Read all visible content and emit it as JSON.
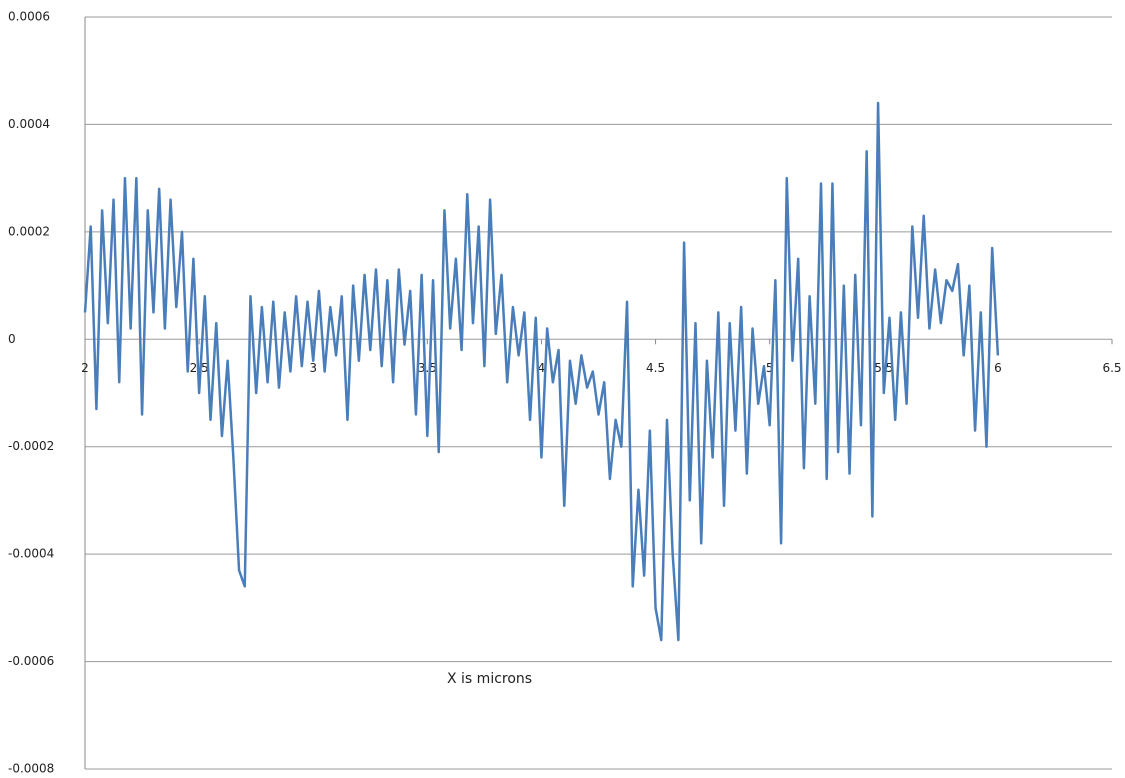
{
  "chart_data": {
    "type": "line",
    "annotation": "X is microns",
    "grid": true,
    "xlim": [
      2,
      6.5
    ],
    "xticks": [
      2,
      2.5,
      3,
      3.5,
      4,
      4.5,
      5,
      5.5,
      6,
      6.5
    ],
    "ylim": [
      -0.0008,
      0.0006
    ],
    "yticks": [
      0.0006,
      0.0004,
      0.0002,
      0,
      -0.0002,
      -0.0004,
      -0.0006,
      -0.0008
    ],
    "x": [
      2,
      2.025,
      2.05,
      2.075,
      2.1,
      2.125,
      2.15,
      2.175,
      2.2,
      2.225,
      2.25,
      2.275,
      2.3,
      2.325,
      2.35,
      2.375,
      2.4,
      2.425,
      2.45,
      2.475,
      2.5,
      2.525,
      2.55,
      2.575,
      2.6,
      2.625,
      2.65,
      2.675,
      2.7,
      2.725,
      2.75,
      2.775,
      2.8,
      2.825,
      2.85,
      2.875,
      2.9,
      2.925,
      2.95,
      2.975,
      3,
      3.025,
      3.05,
      3.075,
      3.1,
      3.125,
      3.15,
      3.175,
      3.2,
      3.225,
      3.25,
      3.275,
      3.3,
      3.325,
      3.35,
      3.375,
      3.4,
      3.425,
      3.45,
      3.475,
      3.5,
      3.525,
      3.55,
      3.575,
      3.6,
      3.625,
      3.65,
      3.675,
      3.7,
      3.725,
      3.75,
      3.775,
      3.8,
      3.825,
      3.85,
      3.875,
      3.9,
      3.925,
      3.95,
      3.975,
      4,
      4.025,
      4.05,
      4.075,
      4.1,
      4.125,
      4.15,
      4.175,
      4.2,
      4.225,
      4.25,
      4.275,
      4.3,
      4.325,
      4.35,
      4.375,
      4.4,
      4.425,
      4.45,
      4.475,
      4.5,
      4.525,
      4.55,
      4.575,
      4.6,
      4.625,
      4.65,
      4.675,
      4.7,
      4.725,
      4.75,
      4.775,
      4.8,
      4.825,
      4.85,
      4.875,
      4.9,
      4.925,
      4.95,
      4.975,
      5,
      5.025,
      5.05,
      5.075,
      5.1,
      5.125,
      5.15,
      5.175,
      5.2,
      5.225,
      5.25,
      5.275,
      5.3,
      5.325,
      5.35,
      5.375,
      5.4,
      5.425,
      5.45,
      5.475,
      5.5,
      5.525,
      5.55,
      5.575,
      5.6,
      5.625,
      5.65,
      5.675,
      5.7,
      5.725,
      5.75,
      5.775,
      5.8,
      5.825,
      5.85,
      5.875,
      5.9,
      5.925,
      5.95,
      5.975,
      6
    ],
    "series": [
      {
        "color": "#4a7ebb",
        "values": [
          5e-05,
          0.00021,
          -0.00013,
          0.00024,
          3e-05,
          0.00026,
          -8e-05,
          0.0003,
          2e-05,
          0.0003,
          -0.00014,
          0.00024,
          5e-05,
          0.00028,
          2e-05,
          0.00026,
          6e-05,
          0.0002,
          -6e-05,
          0.00015,
          -0.0001,
          8e-05,
          -0.00015,
          3e-05,
          -0.00018,
          -4e-05,
          -0.00022,
          -0.00043,
          -0.00046,
          8e-05,
          -0.0001,
          6e-05,
          -8e-05,
          7e-05,
          -9e-05,
          5e-05,
          -6e-05,
          8e-05,
          -5e-05,
          7e-05,
          -4e-05,
          9e-05,
          -6e-05,
          6e-05,
          -3e-05,
          8e-05,
          -0.00015,
          0.0001,
          -4e-05,
          0.00012,
          -2e-05,
          0.00013,
          -5e-05,
          0.00011,
          -8e-05,
          0.00013,
          -1e-05,
          9e-05,
          -0.00014,
          0.00012,
          -0.00018,
          0.00011,
          -0.00021,
          0.00024,
          2e-05,
          0.00015,
          -2e-05,
          0.00027,
          3e-05,
          0.00021,
          -5e-05,
          0.00026,
          1e-05,
          0.00012,
          -8e-05,
          6e-05,
          -3e-05,
          5e-05,
          -0.00015,
          4e-05,
          -0.00022,
          2e-05,
          -8e-05,
          -2e-05,
          -0.00031,
          -4e-05,
          -0.00012,
          -3e-05,
          -9e-05,
          -6e-05,
          -0.00014,
          -8e-05,
          -0.00026,
          -0.00015,
          -0.0002,
          7e-05,
          -0.00046,
          -0.00028,
          -0.00044,
          -0.00017,
          -0.0005,
          -0.00056,
          -0.00015,
          -0.0004,
          -0.00056,
          0.00018,
          -0.0003,
          3e-05,
          -0.00038,
          -4e-05,
          -0.00022,
          5e-05,
          -0.00031,
          3e-05,
          -0.00017,
          6e-05,
          -0.00025,
          2e-05,
          -0.00012,
          -5e-05,
          -0.00016,
          0.00011,
          -0.00038,
          0.0003,
          -4e-05,
          0.00015,
          -0.00024,
          8e-05,
          -0.00012,
          0.00029,
          -0.00026,
          0.00029,
          -0.00021,
          0.0001,
          -0.00025,
          0.00012,
          -0.00016,
          0.00035,
          -0.00033,
          0.00044,
          -0.0001,
          4e-05,
          -0.00015,
          5e-05,
          -0.00012,
          0.00021,
          4e-05,
          0.00023,
          2e-05,
          0.00013,
          3e-05,
          0.00011,
          9e-05,
          0.00014,
          -3e-05,
          0.0001,
          -0.00017,
          5e-05,
          -0.0002,
          0.00017,
          -3e-05
        ]
      }
    ]
  }
}
